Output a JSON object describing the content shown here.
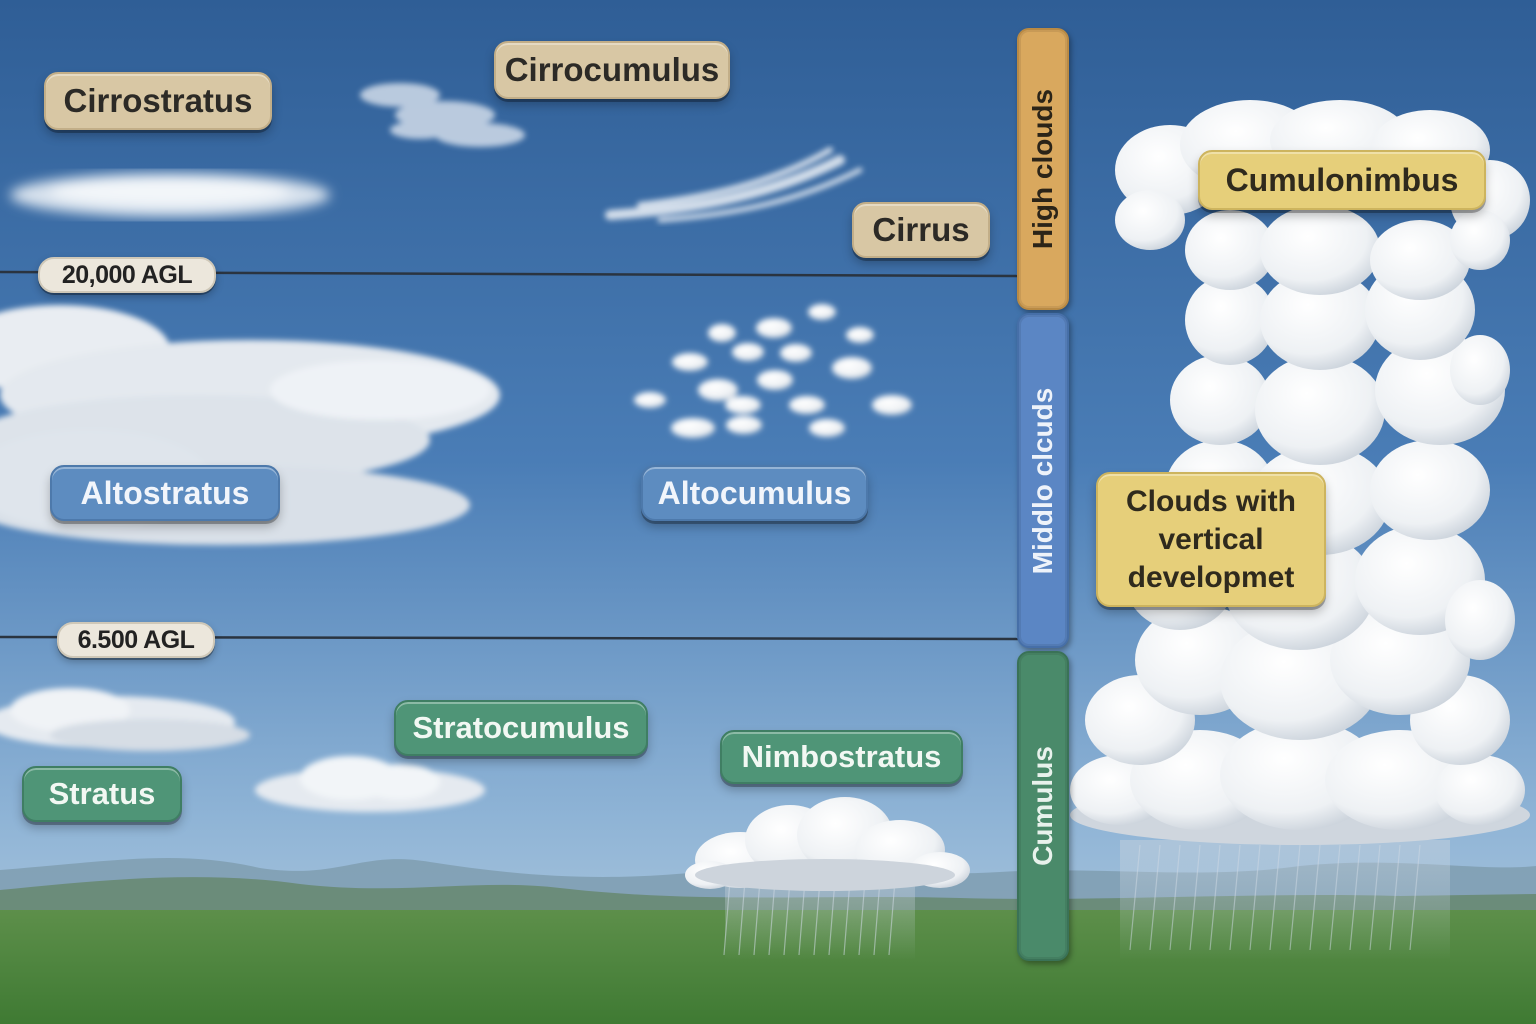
{
  "cloud_types": {
    "cirrostratus": "Cirrostratus",
    "cirrocumulus": "Cirrocumulus",
    "cirrus": "Cirrus",
    "altostratus": "Altostratus",
    "altocumulus": "Altocumulus",
    "stratocumulus": "Stratocumulus",
    "nimbostratus": "Nimbostratus",
    "stratus": "Stratus",
    "cumulonimbus": "Cumulonimbus"
  },
  "vertical_label": {
    "line1": "Clouds with",
    "line2": "vertical",
    "line3": "developmet"
  },
  "altitude_markers": {
    "high": "20,000 AGL",
    "middle": "6.500 AGL"
  },
  "bands": {
    "high": "High clouds",
    "middle": "Middlo clcuds",
    "low": "Cumulus"
  },
  "colors": {
    "high": "#d9a85e",
    "middle": "#5b86c4",
    "low": "#4a8a6a",
    "vertical": "#e6cf7a"
  }
}
